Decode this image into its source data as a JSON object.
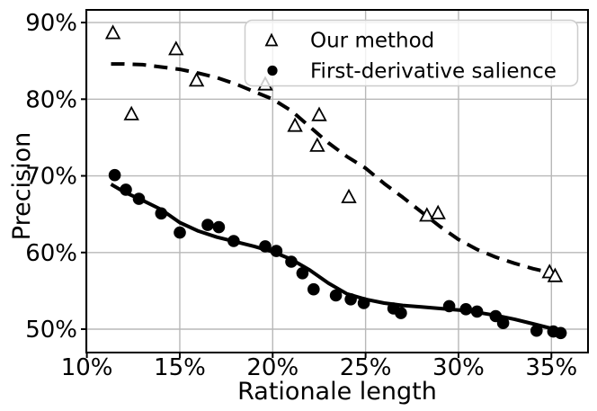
{
  "chart_data": {
    "type": "scatter",
    "title": "",
    "xlabel": "Rationale length",
    "ylabel": "Precision",
    "x_ticks": {
      "values": [
        10,
        15,
        20,
        25,
        30,
        35
      ],
      "labels": [
        "10%",
        "15%",
        "20%",
        "25%",
        "30%",
        "35%"
      ]
    },
    "y_ticks": {
      "values": [
        50,
        60,
        70,
        80,
        90
      ],
      "labels": [
        "50%",
        "60%",
        "70%",
        "80%",
        "90%"
      ]
    },
    "xlim": [
      9.97,
      36.97
    ],
    "ylim": [
      46.95,
      91.65
    ],
    "grid": true,
    "legend": {
      "position": "upper right",
      "entries": [
        {
          "label": "Our method",
          "marker": "open-triangle",
          "line": "dashed"
        },
        {
          "label": "First-derivative salience",
          "marker": "filled-circle",
          "line": "solid"
        }
      ]
    },
    "colors": {
      "foreground": "#000000",
      "background": "#ffffff",
      "grid": "#b8b8b8",
      "legend_border": "#cccccc"
    },
    "series": [
      {
        "name": "Our method",
        "marker": "triangle-open",
        "line_style": "dashed",
        "points": [
          [
            11.4,
            88.6
          ],
          [
            12.4,
            78.0
          ],
          [
            14.8,
            86.5
          ],
          [
            15.9,
            82.4
          ],
          [
            19.6,
            81.9
          ],
          [
            21.2,
            76.5
          ],
          [
            22.4,
            73.9
          ],
          [
            22.5,
            77.9
          ],
          [
            24.1,
            67.2
          ],
          [
            28.3,
            64.8
          ],
          [
            28.9,
            65.1
          ],
          [
            34.9,
            57.4
          ],
          [
            35.2,
            56.9
          ]
        ],
        "trend": [
          [
            11.3,
            84.6
          ],
          [
            12,
            84.6
          ],
          [
            13,
            84.5
          ],
          [
            14,
            84.2
          ],
          [
            15,
            83.9
          ],
          [
            16,
            83.4
          ],
          [
            17,
            82.8
          ],
          [
            18,
            82.0
          ],
          [
            19,
            81.0
          ],
          [
            20,
            80.0
          ],
          [
            21,
            78.5
          ],
          [
            22,
            76.4
          ],
          [
            23,
            74.3
          ],
          [
            24,
            72.5
          ],
          [
            25,
            71.0
          ],
          [
            26,
            69.0
          ],
          [
            27,
            67.2
          ],
          [
            28,
            65.3
          ],
          [
            29,
            63.4
          ],
          [
            30,
            61.7
          ],
          [
            31,
            60.4
          ],
          [
            32,
            59.4
          ],
          [
            33,
            58.6
          ],
          [
            34,
            57.9
          ],
          [
            35.1,
            57.3
          ]
        ]
      },
      {
        "name": "First-derivative salience",
        "marker": "circle-filled",
        "line_style": "solid",
        "points": [
          [
            11.5,
            70.1
          ],
          [
            12.1,
            68.2
          ],
          [
            12.8,
            67.0
          ],
          [
            14.0,
            65.1
          ],
          [
            15.0,
            62.6
          ],
          [
            16.5,
            63.6
          ],
          [
            17.1,
            63.3
          ],
          [
            17.9,
            61.5
          ],
          [
            19.6,
            60.8
          ],
          [
            20.2,
            60.2
          ],
          [
            21.0,
            58.8
          ],
          [
            21.6,
            57.3
          ],
          [
            22.2,
            55.2
          ],
          [
            23.4,
            54.4
          ],
          [
            24.2,
            53.9
          ],
          [
            24.9,
            53.4
          ],
          [
            26.5,
            52.7
          ],
          [
            26.9,
            52.1
          ],
          [
            29.5,
            53.0
          ],
          [
            30.4,
            52.6
          ],
          [
            31.0,
            52.3
          ],
          [
            32.0,
            51.7
          ],
          [
            32.4,
            50.8
          ],
          [
            34.2,
            49.8
          ],
          [
            35.1,
            49.7
          ],
          [
            35.5,
            49.5
          ]
        ],
        "trend": [
          [
            11.3,
            68.9
          ],
          [
            12,
            67.9
          ],
          [
            13,
            66.8
          ],
          [
            14,
            65.6
          ],
          [
            15,
            63.9
          ],
          [
            16,
            62.8
          ],
          [
            17,
            62.0
          ],
          [
            18,
            61.4
          ],
          [
            19,
            60.8
          ],
          [
            20,
            60.1
          ],
          [
            21,
            59.1
          ],
          [
            22,
            57.7
          ],
          [
            23,
            56.0
          ],
          [
            24,
            54.6
          ],
          [
            25,
            53.9
          ],
          [
            26,
            53.4
          ],
          [
            27,
            53.1
          ],
          [
            28,
            52.9
          ],
          [
            29,
            52.7
          ],
          [
            30,
            52.5
          ],
          [
            31,
            52.2
          ],
          [
            32,
            51.8
          ],
          [
            33,
            51.3
          ],
          [
            34,
            50.7
          ],
          [
            35,
            50.1
          ],
          [
            35.7,
            49.7
          ]
        ]
      }
    ]
  }
}
